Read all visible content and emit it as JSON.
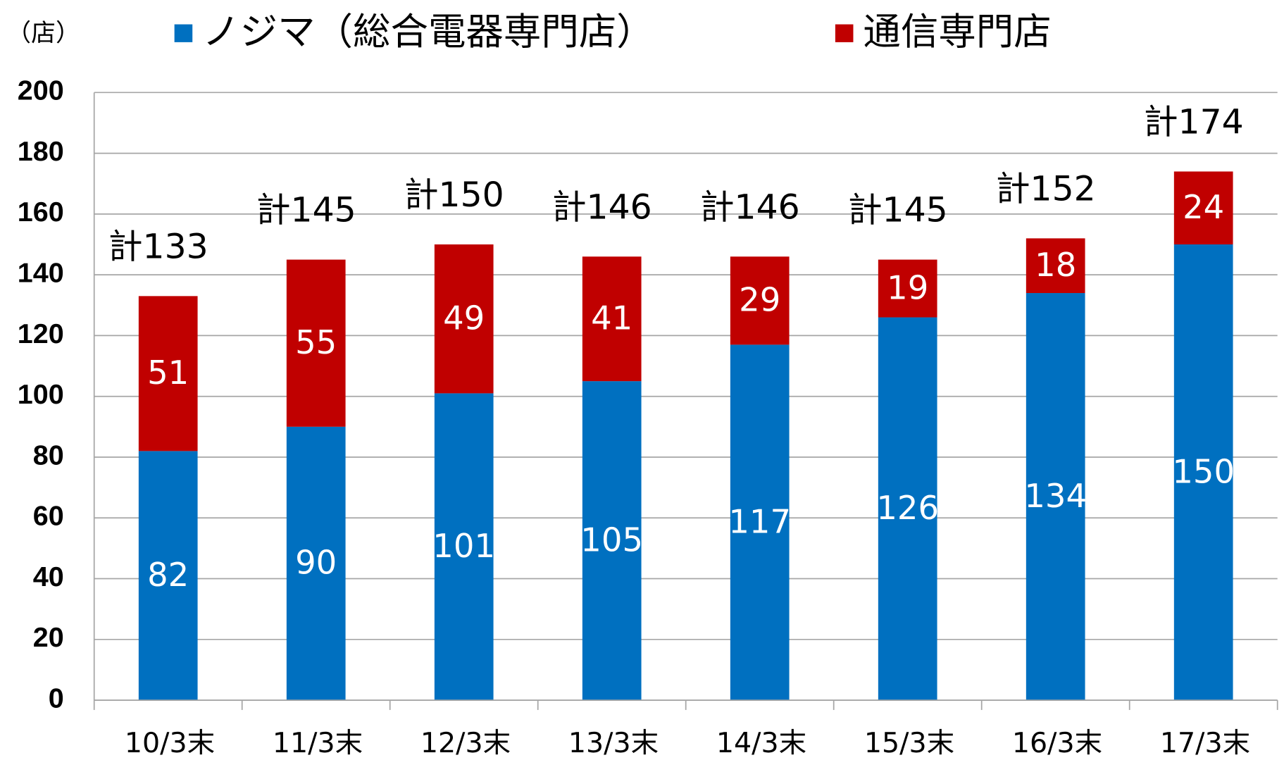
{
  "chart_data": {
    "type": "stacked_bar",
    "y_axis_label": "（店）",
    "categories": [
      "10/3末",
      "11/3末",
      "12/3末",
      "13/3末",
      "14/3末",
      "15/3末",
      "16/3末",
      "17/3末"
    ],
    "series": [
      {
        "name": "ノジマ（総合電器専門店）",
        "color": "#0070c0",
        "values": [
          82,
          90,
          101,
          105,
          117,
          126,
          134,
          150
        ]
      },
      {
        "name": "通信専門店",
        "color": "#c00000",
        "values": [
          51,
          55,
          49,
          41,
          29,
          19,
          18,
          24
        ]
      }
    ],
    "totals": {
      "values": [
        133,
        145,
        150,
        146,
        146,
        145,
        152,
        174
      ],
      "value_labels": [
        "計133",
        "計145",
        "計150",
        "計146",
        "計146",
        "計145",
        "計152",
        "計174"
      ]
    },
    "ylim": [
      0,
      200
    ],
    "yticks": [
      0,
      20,
      40,
      60,
      80,
      100,
      120,
      140,
      160,
      180,
      200
    ],
    "grid": true
  }
}
